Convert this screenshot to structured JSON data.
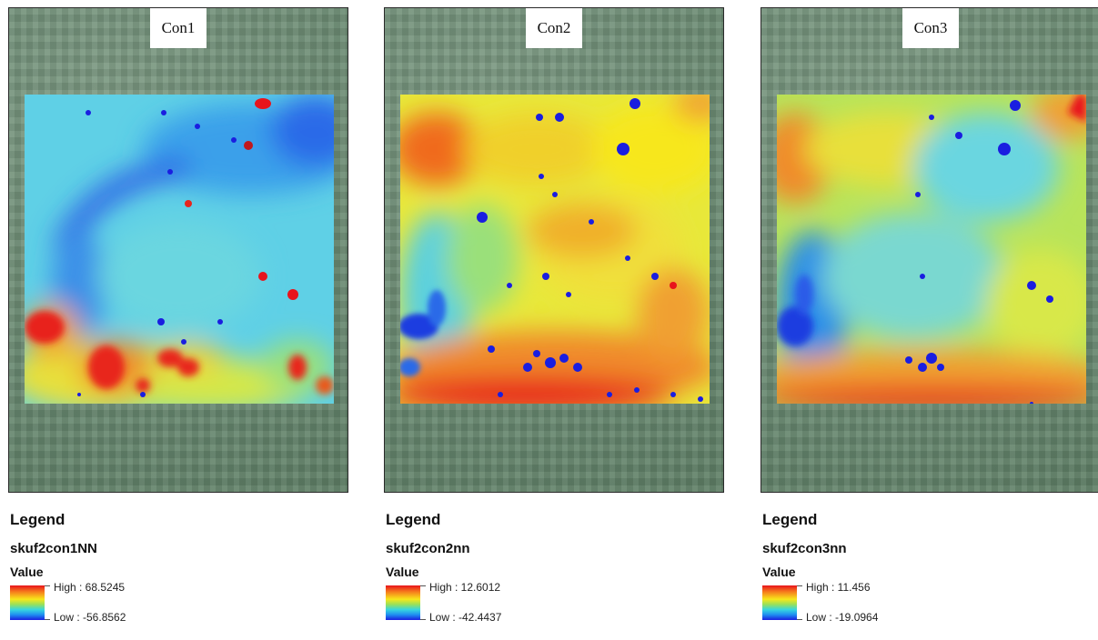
{
  "panels": [
    {
      "title": "Con1",
      "legend_heading": "Legend",
      "layer_name": "skuf2con1NN",
      "value_label": "Value",
      "high_label": "High : 68.5245",
      "low_label": "Low : -56.8562",
      "high": 68.5245,
      "low": -56.8562
    },
    {
      "title": "Con2",
      "legend_heading": "Legend",
      "layer_name": "skuf2con2nn",
      "value_label": "Value",
      "high_label": "High : 12.6012",
      "low_label": "Low : -42.4437",
      "high": 12.6012,
      "low": -42.4437
    },
    {
      "title": "Con3",
      "legend_heading": "Legend",
      "layer_name": "skuf2con3nn",
      "value_label": "Value",
      "high_label": "High : 11.456",
      "low_label": "Low : -19.0964",
      "high": 11.456,
      "low": -19.0964
    }
  ],
  "colors": {
    "ramp_high": "#e8141c",
    "ramp_mid_orange": "#f67a1c",
    "ramp_mid_yellow": "#f7e71b",
    "ramp_mid_cyan": "#37d7e0",
    "ramp_low": "#1a1ee0",
    "background_imagery": "#6a8a72"
  }
}
